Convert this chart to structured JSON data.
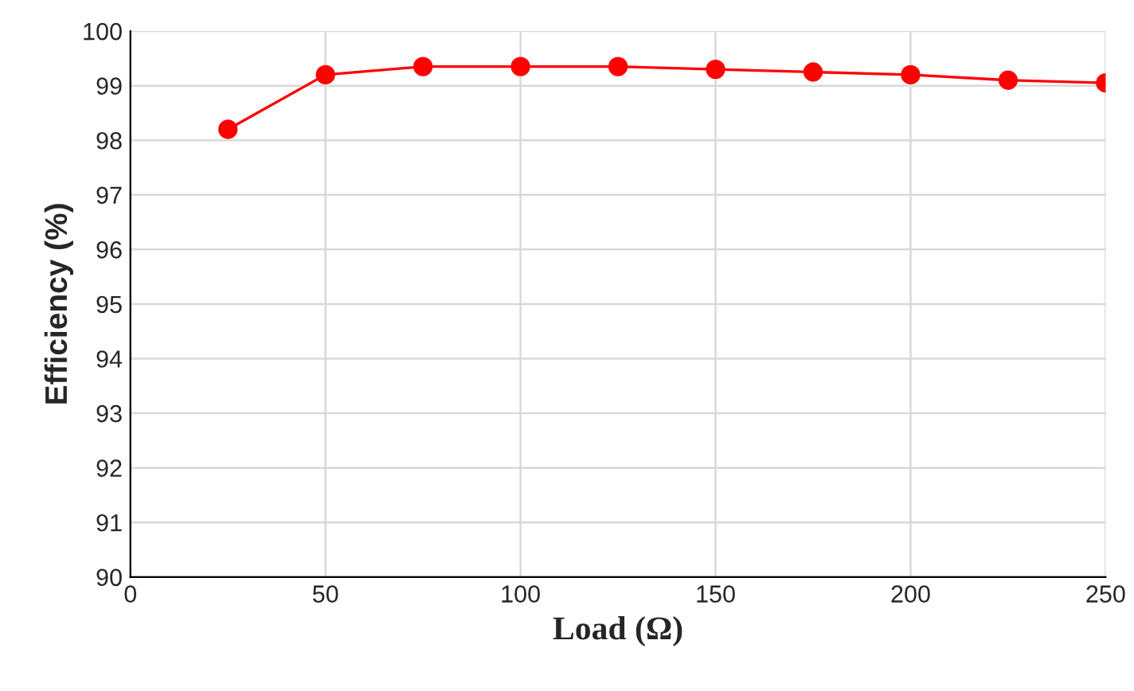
{
  "chart_data": {
    "type": "line",
    "xlabel": "Load (Ω)",
    "ylabel": "Efficiency (%)",
    "x": [
      25,
      50,
      75,
      100,
      125,
      150,
      175,
      200,
      225,
      250
    ],
    "series": [
      {
        "color": "#ff0000",
        "values": [
          98.2,
          99.2,
          99.35,
          99.35,
          99.35,
          99.3,
          99.25,
          99.2,
          99.1,
          99.05
        ]
      }
    ],
    "xlim": [
      0,
      250
    ],
    "xticks": [
      0,
      50,
      100,
      150,
      200,
      250
    ],
    "ylim": [
      90,
      100
    ],
    "yticks": [
      90,
      91,
      92,
      93,
      94,
      95,
      96,
      97,
      98,
      99,
      100
    ],
    "grid": true,
    "marker": "circle",
    "line_style": "solid",
    "legend": false
  }
}
